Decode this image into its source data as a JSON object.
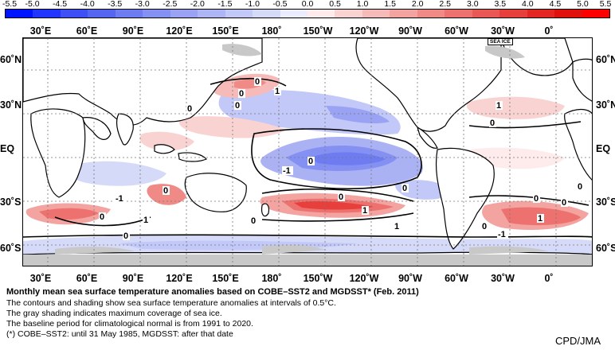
{
  "colorbar": {
    "ticks": [
      "-5.5",
      "-5.0",
      "-4.5",
      "-4.0",
      "-3.5",
      "-3.0",
      "-2.5",
      "-2.0",
      "-1.5",
      "-1.0",
      "-0.5",
      "0.0",
      "0.5",
      "1.0",
      "1.5",
      "2.0",
      "2.5",
      "3.0",
      "3.5",
      "4.0",
      "4.5",
      "5.0",
      "5.5"
    ],
    "colors": [
      "#0015ff",
      "#2235ff",
      "#3d4ff5",
      "#5565f0",
      "#6d7cf0",
      "#8591f2",
      "#9aa3f3",
      "#adb5f5",
      "#c2c8f7",
      "#d6daf9",
      "#ebedfc",
      "#fdeceb",
      "#f9d3d1",
      "#f6bbb8",
      "#f3a3a0",
      "#f08a87",
      "#ed716e",
      "#ea5855",
      "#e73f3c",
      "#e42623",
      "#e0100d",
      "#ff0000"
    ]
  },
  "longitude_labels": [
    "30˚E",
    "60˚E",
    "90˚E",
    "120˚E",
    "150˚E",
    "180˚",
    "150˚W",
    "120˚W",
    "90˚W",
    "60˚W",
    "30˚W",
    "0˚"
  ],
  "latitude_labels": [
    "60˚N",
    "30˚N",
    "EQ",
    "30˚S",
    "60˚S"
  ],
  "sea_ice_tag": "SEA ICE",
  "contour_labels": [
    "0",
    "1",
    "0",
    "0",
    "0",
    "-1",
    "0",
    "0",
    "0",
    "1",
    "0",
    "1",
    "0",
    "-1",
    "0",
    "1",
    "0",
    "0",
    "0",
    "0",
    "-1",
    "0",
    "1",
    "1",
    "0"
  ],
  "caption": {
    "title": "Monthly mean sea surface temperature anomalies based on COBE–SST2 and MGDSST* (Feb. 2011)",
    "line1": "The contours and shading show sea surface temperature anomalies at intervals of 0.5°C.",
    "line2": "The gray shading indicates maximum coverage of sea ice.",
    "line3": "The baseline period for climatological normal is from 1991 to 2020.",
    "line4": "(*) COBE–SST2: until 31 May 1985, MGDSST: after that date"
  },
  "credit": "CPD/JMA"
}
